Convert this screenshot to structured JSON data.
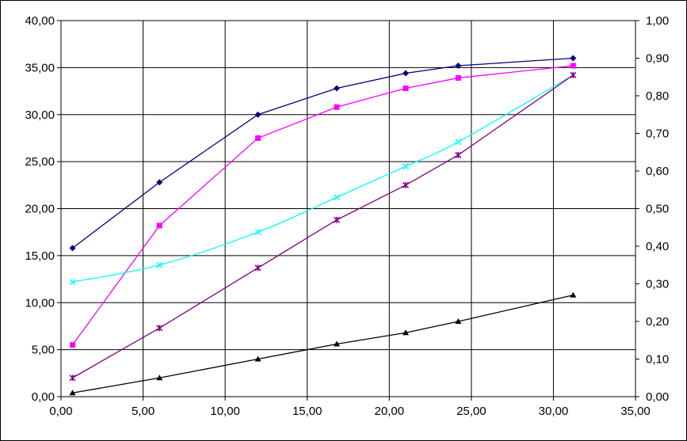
{
  "chart_data": {
    "type": "line",
    "title": "",
    "xlabel": "",
    "ylabel": "",
    "y2label": "",
    "grid": true,
    "legend": "none",
    "xlim": [
      0,
      35
    ],
    "ylim": [
      0,
      40
    ],
    "y2lim": [
      0,
      1
    ],
    "x_ticks": [
      "0,00",
      "5,00",
      "10,00",
      "15,00",
      "20,00",
      "25,00",
      "30,00",
      "35,00"
    ],
    "y_ticks": [
      "0,00",
      "5,00",
      "10,00",
      "15,00",
      "20,00",
      "25,00",
      "30,00",
      "35,00",
      "40,00"
    ],
    "y2_ticks": [
      "0,00",
      "0,10",
      "0,20",
      "0,30",
      "0,40",
      "0,50",
      "0,60",
      "0,70",
      "0,80",
      "0,90",
      "1,00"
    ],
    "series": [
      {
        "axis": "left",
        "color": "#000080",
        "marker": "diamond",
        "smooth": false,
        "x": [
          0.7,
          6.0,
          12.0,
          16.8,
          21.0,
          24.2,
          31.2
        ],
        "y": [
          15.8,
          22.8,
          30.0,
          32.8,
          34.4,
          35.2,
          36.0
        ]
      },
      {
        "axis": "left",
        "color": "#ff00ff",
        "marker": "square",
        "smooth": false,
        "x": [
          0.7,
          6.0,
          12.0,
          16.8,
          21.0,
          24.2,
          31.2
        ],
        "y": [
          5.5,
          18.2,
          27.5,
          30.8,
          32.8,
          33.9,
          35.2
        ]
      },
      {
        "axis": "left",
        "color": "#00ffff",
        "marker": "x",
        "smooth": true,
        "x": [
          0.7,
          6.0,
          12.0,
          16.8,
          21.0,
          24.2,
          31.2
        ],
        "y": [
          12.2,
          14.0,
          17.5,
          21.2,
          24.5,
          27.1,
          34.2
        ]
      },
      {
        "axis": "left",
        "color": "#800080",
        "marker": "star",
        "smooth": false,
        "x": [
          0.7,
          6.0,
          12.0,
          16.8,
          21.0,
          24.2,
          31.2
        ],
        "y": [
          2.0,
          7.3,
          13.7,
          18.8,
          22.5,
          25.7,
          34.2
        ]
      },
      {
        "axis": "left",
        "color": "#000000",
        "marker": "triangle",
        "smooth": false,
        "x": [
          0.7,
          6.0,
          12.0,
          16.8,
          21.0,
          24.2,
          31.2
        ],
        "y": [
          0.4,
          2.0,
          4.0,
          5.6,
          6.8,
          8.0,
          10.8
        ]
      }
    ]
  }
}
